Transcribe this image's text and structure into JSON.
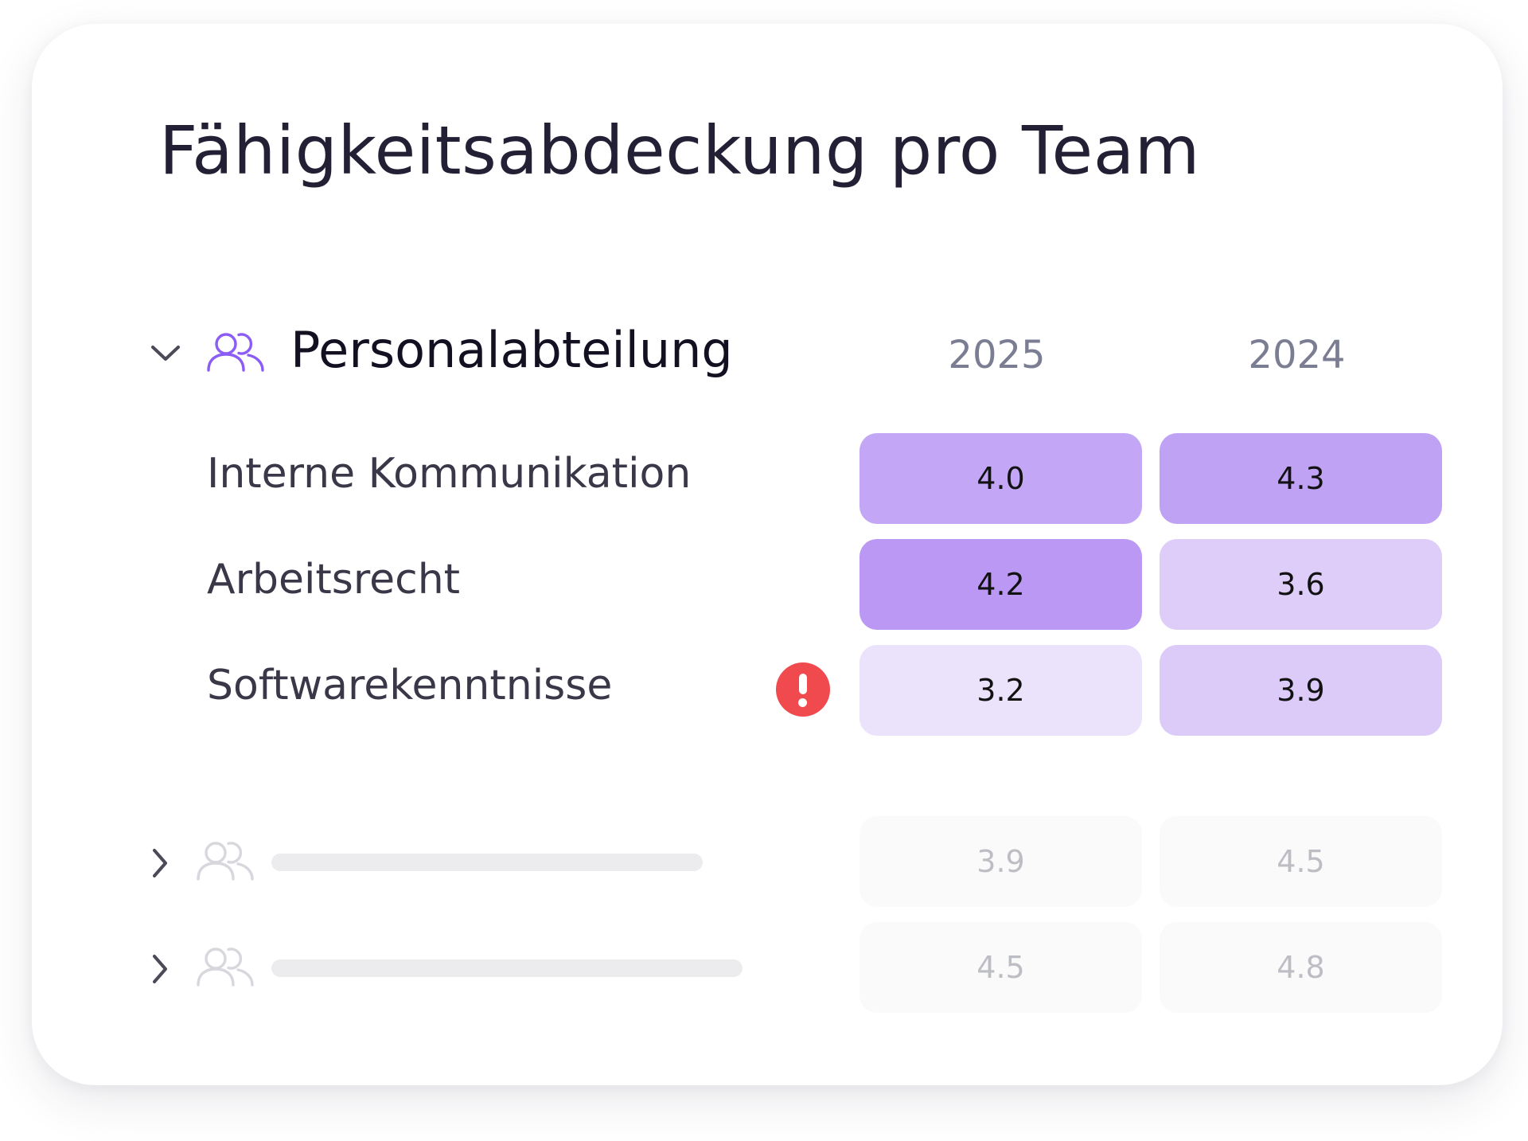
{
  "title": "Fähigkeitsabdeckung pro Team",
  "columns": [
    "2025",
    "2024"
  ],
  "expanded_team": {
    "name": "Personalabteilung",
    "icon": "users-icon",
    "toggle_icon": "chevron-down-icon",
    "skills": [
      {
        "label": "Interne Kommunikation",
        "values": [
          "4.0",
          "4.3"
        ],
        "colors": [
          "#c3a6f5",
          "#c0a2f4"
        ],
        "alert": false
      },
      {
        "label": "Arbeitsrecht",
        "values": [
          "4.2",
          "3.6"
        ],
        "colors": [
          "#bb98f3",
          "#dfcdf9"
        ],
        "alert": false
      },
      {
        "label": "Softwarekenntnisse",
        "values": [
          "3.2",
          "3.9"
        ],
        "colors": [
          "#ebe2fb",
          "#dccbf9"
        ],
        "alert": true
      }
    ]
  },
  "alert_icon": "exclamation-alert-icon",
  "alert_color": "#f04a4f",
  "collapsed_teams": [
    {
      "values": [
        "3.9",
        "4.5"
      ],
      "toggle_icon": "chevron-right-icon",
      "icon": "users-icon"
    },
    {
      "values": [
        "4.5",
        "4.8"
      ],
      "toggle_icon": "chevron-right-icon",
      "icon": "users-icon"
    }
  ],
  "colors": {
    "accent": "#8b5cf6",
    "title": "#231f35",
    "muted": "#7b7e93"
  }
}
